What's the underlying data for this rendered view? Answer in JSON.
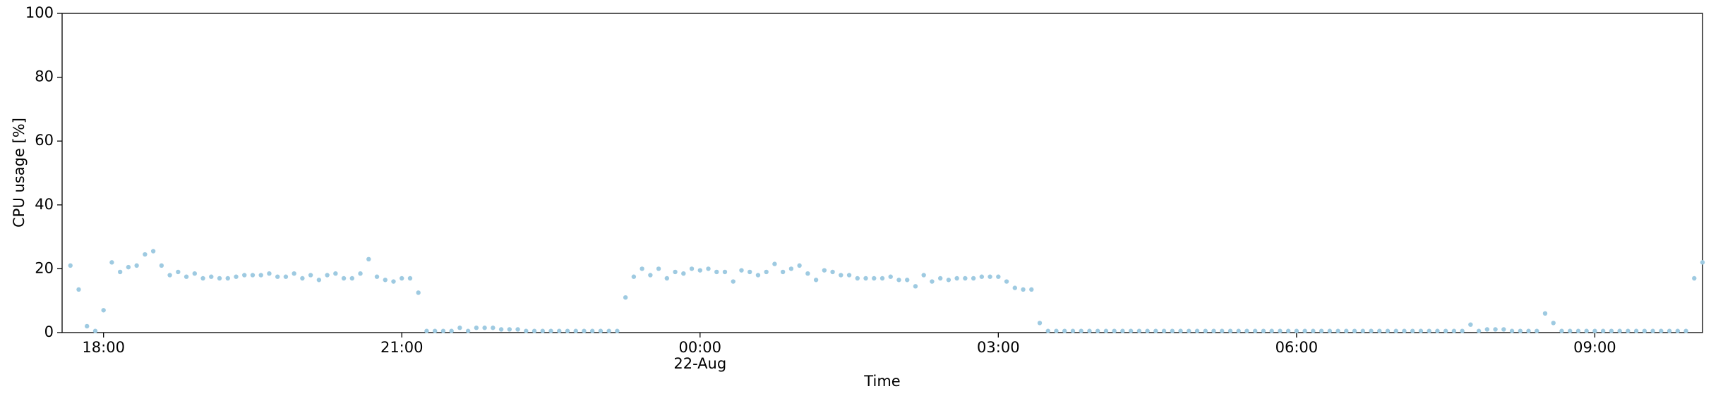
{
  "chart_data": {
    "type": "scatter",
    "xlabel": "Time",
    "ylabel": "CPU usage [%]",
    "color": "#9ecae1",
    "xlim": [
      "17:35",
      "10:05"
    ],
    "xticks": [
      "18:00",
      "21:00",
      "00:00",
      "03:00",
      "06:00",
      "09:00"
    ],
    "xtick_sublabels": [
      null,
      null,
      "22-Aug",
      null,
      null,
      null
    ],
    "ylim": [
      0,
      100
    ],
    "yticks": [
      0,
      20,
      40,
      60,
      80,
      100
    ],
    "x": [
      "17:40",
      "17:45",
      "17:50",
      "17:55",
      "18:00",
      "18:05",
      "18:10",
      "18:15",
      "18:20",
      "18:25",
      "18:30",
      "18:35",
      "18:40",
      "18:45",
      "18:50",
      "18:55",
      "19:00",
      "19:05",
      "19:10",
      "19:15",
      "19:20",
      "19:25",
      "19:30",
      "19:35",
      "19:40",
      "19:45",
      "19:50",
      "19:55",
      "20:00",
      "20:05",
      "20:10",
      "20:15",
      "20:20",
      "20:25",
      "20:30",
      "20:35",
      "20:40",
      "20:45",
      "20:50",
      "20:55",
      "21:00",
      "21:05",
      "21:10",
      "21:15",
      "21:20",
      "21:25",
      "21:30",
      "21:35",
      "21:40",
      "21:45",
      "21:50",
      "21:55",
      "22:00",
      "22:05",
      "22:10",
      "22:15",
      "22:20",
      "22:25",
      "22:30",
      "22:35",
      "22:40",
      "22:45",
      "22:50",
      "22:55",
      "23:00",
      "23:05",
      "23:10",
      "23:15",
      "23:20",
      "23:25",
      "23:30",
      "23:35",
      "23:40",
      "23:45",
      "23:50",
      "23:55",
      "00:00",
      "00:05",
      "00:10",
      "00:15",
      "00:20",
      "00:25",
      "00:30",
      "00:35",
      "00:40",
      "00:45",
      "00:50",
      "00:55",
      "01:00",
      "01:05",
      "01:10",
      "01:15",
      "01:20",
      "01:25",
      "01:30",
      "01:35",
      "01:40",
      "01:45",
      "01:50",
      "01:55",
      "02:00",
      "02:05",
      "02:10",
      "02:15",
      "02:20",
      "02:25",
      "02:30",
      "02:35",
      "02:40",
      "02:45",
      "02:50",
      "02:55",
      "03:00",
      "03:05",
      "03:10",
      "03:15",
      "03:20",
      "03:25",
      "03:30",
      "03:35",
      "03:40",
      "03:45",
      "03:50",
      "03:55",
      "04:00",
      "04:05",
      "04:10",
      "04:15",
      "04:20",
      "04:25",
      "04:30",
      "04:35",
      "04:40",
      "04:45",
      "04:50",
      "04:55",
      "05:00",
      "05:05",
      "05:10",
      "05:15",
      "05:20",
      "05:25",
      "05:30",
      "05:35",
      "05:40",
      "05:45",
      "05:50",
      "05:55",
      "06:00",
      "06:05",
      "06:10",
      "06:15",
      "06:20",
      "06:25",
      "06:30",
      "06:35",
      "06:40",
      "06:45",
      "06:50",
      "06:55",
      "07:00",
      "07:05",
      "07:10",
      "07:15",
      "07:20",
      "07:25",
      "07:30",
      "07:35",
      "07:40",
      "07:45",
      "07:50",
      "07:55",
      "08:00",
      "08:05",
      "08:10",
      "08:15",
      "08:20",
      "08:25",
      "08:30",
      "08:35",
      "08:40",
      "08:45",
      "08:50",
      "08:55",
      "09:00",
      "09:05",
      "09:10",
      "09:15",
      "09:20",
      "09:25",
      "09:30",
      "09:35",
      "09:40",
      "09:45",
      "09:50",
      "09:55",
      "10:00",
      "10:05"
    ],
    "values": [
      21,
      13.5,
      2,
      0.5,
      7,
      22,
      19,
      20.5,
      21,
      24.5,
      25.5,
      21,
      18,
      19,
      17.5,
      18.5,
      17,
      17.5,
      17,
      17,
      17.5,
      18,
      18,
      18,
      18.5,
      17.5,
      17.5,
      18.5,
      17,
      18,
      16.5,
      18,
      18.5,
      17,
      17,
      18.5,
      23,
      17.5,
      16.5,
      16,
      17,
      17,
      12.5,
      0.5,
      0.5,
      0.5,
      0.5,
      1.5,
      0.5,
      1.5,
      1.5,
      1.5,
      1,
      1,
      1,
      0.5,
      0.5,
      0.5,
      0.5,
      0.5,
      0.5,
      0.5,
      0.5,
      0.5,
      0.5,
      0.5,
      0.5,
      11,
      17.5,
      20,
      18,
      20,
      17,
      19,
      18.5,
      20,
      19.5,
      20,
      19,
      19,
      16,
      19.5,
      19,
      18,
      19,
      21.5,
      19,
      20,
      21,
      18.5,
      16.5,
      19.5,
      19,
      18,
      18,
      17,
      17,
      17,
      17,
      17.5,
      16.5,
      16.5,
      14.5,
      18,
      16,
      17,
      16.5,
      17,
      17,
      17,
      17.5,
      17.5,
      17.5,
      16,
      14,
      13.5,
      13.5,
      3,
      0.5,
      0.5,
      0.5,
      0.5,
      0.5,
      0.5,
      0.5,
      0.5,
      0.5,
      0.5,
      0.5,
      0.5,
      0.5,
      0.5,
      0.5,
      0.5,
      0.5,
      0.5,
      0.5,
      0.5,
      0.5,
      0.5,
      0.5,
      0.5,
      0.5,
      0.5,
      0.5,
      0.5,
      0.5,
      0.5,
      0.5,
      0.5,
      0.5,
      0.5,
      0.5,
      0.5,
      0.5,
      0.5,
      0.5,
      0.5,
      0.5,
      0.5,
      0.5,
      0.5,
      0.5,
      0.5,
      0.5,
      0.5,
      0.5,
      0.5,
      0.5,
      2.5,
      0.5,
      1,
      1,
      1,
      0.5,
      0.5,
      0.5,
      0.5,
      6,
      3,
      0.5,
      0.5,
      0.5,
      0.5,
      0.5,
      0.5,
      0.5,
      0.5,
      0.5,
      0.5,
      0.5,
      0.5,
      0.5,
      0.5,
      0.5,
      0.5,
      17,
      22
    ]
  }
}
